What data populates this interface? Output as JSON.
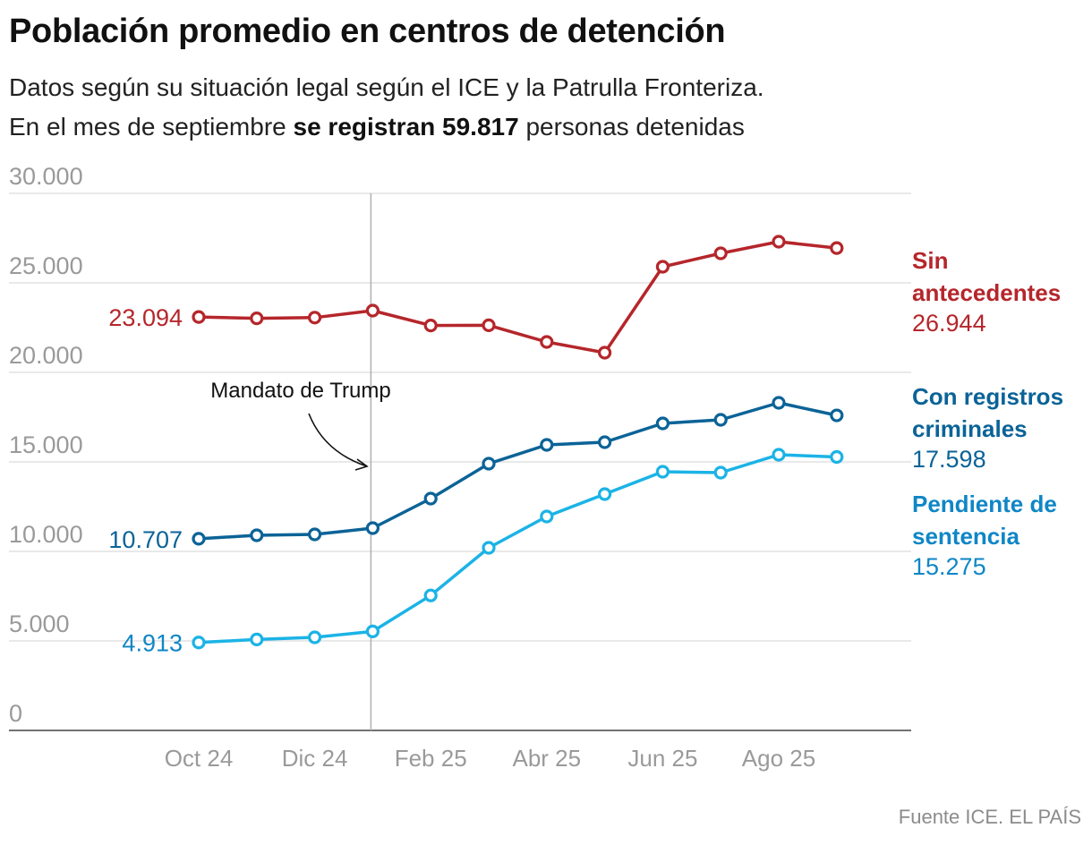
{
  "header": {
    "title": "Población promedio en centros de detención",
    "subtitle_line1": "Datos según su situación legal según el ICE y la Patrulla Fronteriza.",
    "subtitle_line2_pre": "En el mes de septiembre ",
    "subtitle_line2_bold": "se registran 59.817",
    "subtitle_line2_post": " personas detenidas"
  },
  "source": "Fuente ICE. EL PAÍS",
  "chart_data": {
    "type": "line",
    "title": "Población promedio en centros de detención",
    "xlabel": "",
    "ylabel": "",
    "ylim": [
      0,
      30000
    ],
    "y_ticks": [
      0,
      5000,
      10000,
      15000,
      20000,
      25000,
      30000
    ],
    "y_tick_labels": [
      "0",
      "5.000",
      "10.000",
      "15.000",
      "20.000",
      "25.000",
      "30.000"
    ],
    "x": [
      "Oct 24",
      "Nov 24",
      "Dic 24",
      "Ene 25",
      "Feb 25",
      "Mar 25",
      "Abr 25",
      "May 25",
      "Jun 25",
      "Jul 25",
      "Ago 25",
      "Sep 25"
    ],
    "x_tick_labels": [
      "Oct 24",
      "Dic 24",
      "Feb 25",
      "Abr 25",
      "Jun 25",
      "Ago 25"
    ],
    "x_tick_indices": [
      0,
      2,
      4,
      6,
      8,
      10
    ],
    "grid": true,
    "annotation": {
      "text": "Mandato de Trump",
      "x_index": 3
    },
    "series": [
      {
        "name": "Sin antecedentes",
        "label_lines": [
          "Sin",
          "antecedentes"
        ],
        "color": "#b5262b",
        "start_label": "23.094",
        "end_label": "26.944",
        "values": [
          23094,
          23020,
          23060,
          23450,
          22620,
          22630,
          21700,
          21100,
          25900,
          26650,
          27300,
          26944
        ]
      },
      {
        "name": "Con registros criminales",
        "label_lines": [
          "Con registros",
          "criminales"
        ],
        "color": "#0b6397",
        "start_label": "10.707",
        "end_label": "17.598",
        "values": [
          10707,
          10900,
          10950,
          11300,
          12950,
          14900,
          15950,
          16100,
          17150,
          17350,
          18300,
          17598
        ]
      },
      {
        "name": "Pendiente de sentencia",
        "label_lines": [
          "Pendiente de",
          "sentencia"
        ],
        "color": "#1bb3e6",
        "label_color": "#0f86c6",
        "start_label": "4.913",
        "end_label": "15.275",
        "values": [
          4913,
          5080,
          5200,
          5530,
          7540,
          10200,
          11950,
          13200,
          14450,
          14400,
          15400,
          15275
        ]
      }
    ]
  }
}
